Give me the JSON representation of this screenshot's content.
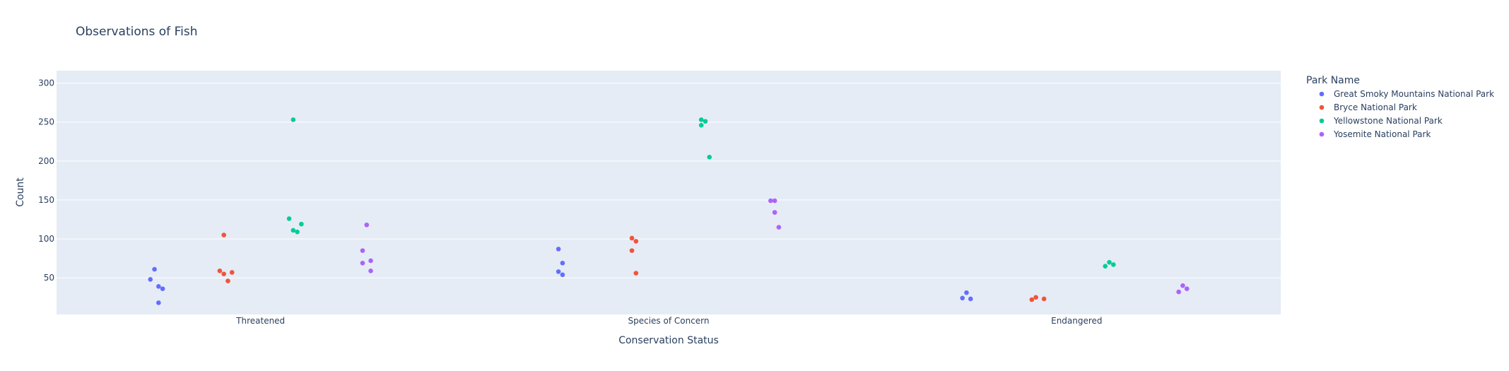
{
  "chart_data": {
    "type": "scatter",
    "title": "Observations of Fish",
    "xlabel": "Conservation Status",
    "ylabel": "Count",
    "categories": [
      "Threatened",
      "Species of Concern",
      "Endangered"
    ],
    "ylim": [
      3,
      316
    ],
    "yticks": [
      50,
      100,
      150,
      200,
      250,
      300
    ],
    "grid": true,
    "legend_title": "Park Name",
    "legend_position": "right",
    "series": [
      {
        "name": "Great Smoky Mountains National Park",
        "color": "#636efa",
        "points": [
          {
            "category": "Threatened",
            "y": 61,
            "jitter": -0.26
          },
          {
            "category": "Threatened",
            "y": 48,
            "jitter": -0.27
          },
          {
            "category": "Threatened",
            "y": 39,
            "jitter": -0.25
          },
          {
            "category": "Threatened",
            "y": 36,
            "jitter": -0.24
          },
          {
            "category": "Threatened",
            "y": 18,
            "jitter": -0.25
          },
          {
            "category": "Species of Concern",
            "y": 87,
            "jitter": -0.27
          },
          {
            "category": "Species of Concern",
            "y": 69,
            "jitter": -0.26
          },
          {
            "category": "Species of Concern",
            "y": 58,
            "jitter": -0.27
          },
          {
            "category": "Species of Concern",
            "y": 54,
            "jitter": -0.26
          },
          {
            "category": "Endangered",
            "y": 31,
            "jitter": -0.27
          },
          {
            "category": "Endangered",
            "y": 24,
            "jitter": -0.28
          },
          {
            "category": "Endangered",
            "y": 23,
            "jitter": -0.26
          }
        ]
      },
      {
        "name": "Bryce National Park",
        "color": "#ef553b",
        "points": [
          {
            "category": "Threatened",
            "y": 105,
            "jitter": -0.09
          },
          {
            "category": "Threatened",
            "y": 59,
            "jitter": -0.1
          },
          {
            "category": "Threatened",
            "y": 57,
            "jitter": -0.07
          },
          {
            "category": "Threatened",
            "y": 55,
            "jitter": -0.09
          },
          {
            "category": "Threatened",
            "y": 46,
            "jitter": -0.08
          },
          {
            "category": "Species of Concern",
            "y": 101,
            "jitter": -0.09
          },
          {
            "category": "Species of Concern",
            "y": 97,
            "jitter": -0.08
          },
          {
            "category": "Species of Concern",
            "y": 85,
            "jitter": -0.09
          },
          {
            "category": "Species of Concern",
            "y": 56,
            "jitter": -0.08
          },
          {
            "category": "Endangered",
            "y": 25,
            "jitter": -0.1
          },
          {
            "category": "Endangered",
            "y": 23,
            "jitter": -0.08
          },
          {
            "category": "Endangered",
            "y": 22,
            "jitter": -0.11
          }
        ]
      },
      {
        "name": "Yellowstone National Park",
        "color": "#00cc96",
        "points": [
          {
            "category": "Threatened",
            "y": 253,
            "jitter": 0.08
          },
          {
            "category": "Threatened",
            "y": 126,
            "jitter": 0.07
          },
          {
            "category": "Threatened",
            "y": 119,
            "jitter": 0.1
          },
          {
            "category": "Threatened",
            "y": 111,
            "jitter": 0.08
          },
          {
            "category": "Threatened",
            "y": 109,
            "jitter": 0.09
          },
          {
            "category": "Species of Concern",
            "y": 253,
            "jitter": 0.08
          },
          {
            "category": "Species of Concern",
            "y": 251,
            "jitter": 0.09
          },
          {
            "category": "Species of Concern",
            "y": 246,
            "jitter": 0.08
          },
          {
            "category": "Species of Concern",
            "y": 205,
            "jitter": 0.1
          },
          {
            "category": "Endangered",
            "y": 70,
            "jitter": 0.08
          },
          {
            "category": "Endangered",
            "y": 67,
            "jitter": 0.09
          },
          {
            "category": "Endangered",
            "y": 65,
            "jitter": 0.07
          }
        ]
      },
      {
        "name": "Yosemite National Park",
        "color": "#ab63fa",
        "points": [
          {
            "category": "Threatened",
            "y": 118,
            "jitter": 0.26
          },
          {
            "category": "Threatened",
            "y": 85,
            "jitter": 0.25
          },
          {
            "category": "Threatened",
            "y": 72,
            "jitter": 0.27
          },
          {
            "category": "Threatened",
            "y": 69,
            "jitter": 0.25
          },
          {
            "category": "Threatened",
            "y": 59,
            "jitter": 0.27
          },
          {
            "category": "Species of Concern",
            "y": 149,
            "jitter": 0.25
          },
          {
            "category": "Species of Concern",
            "y": 149,
            "jitter": 0.26
          },
          {
            "category": "Species of Concern",
            "y": 134,
            "jitter": 0.26
          },
          {
            "category": "Species of Concern",
            "y": 115,
            "jitter": 0.27
          },
          {
            "category": "Endangered",
            "y": 40,
            "jitter": 0.26
          },
          {
            "category": "Endangered",
            "y": 36,
            "jitter": 0.27
          },
          {
            "category": "Endangered",
            "y": 32,
            "jitter": 0.25
          }
        ]
      }
    ]
  }
}
